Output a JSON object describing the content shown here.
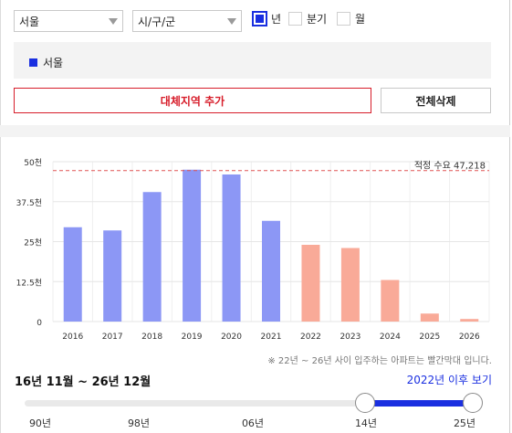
{
  "filters": {
    "city": "서울",
    "district": "시/구/군",
    "period_options": [
      {
        "label": "년",
        "checked": true
      },
      {
        "label": "분기",
        "checked": false
      },
      {
        "label": "월",
        "checked": false
      }
    ]
  },
  "region_tag": {
    "label": "서울",
    "color": "#1a2fe0"
  },
  "buttons": {
    "add_label": "대체지역 추가",
    "clear_label": "전체삭제"
  },
  "chart_data": {
    "type": "bar",
    "categories": [
      "2016",
      "2017",
      "2018",
      "2019",
      "2020",
      "2021",
      "2022",
      "2023",
      "2024",
      "2025",
      "2026"
    ],
    "values": [
      29500,
      28500,
      40500,
      47500,
      46000,
      31500,
      24000,
      23000,
      13000,
      2500,
      800
    ],
    "bar_colors": [
      "#8c97f5",
      "#8c97f5",
      "#8c97f5",
      "#8c97f5",
      "#8c97f5",
      "#8c97f5",
      "#f9aa98",
      "#f9aa98",
      "#f9aa98",
      "#f9aa98",
      "#f9aa98"
    ],
    "ylim": [
      0,
      50000
    ],
    "yticks": [
      {
        "value": 0,
        "label": "0"
      },
      {
        "value": 12500,
        "label": "12.5천"
      },
      {
        "value": 25000,
        "label": "25천"
      },
      {
        "value": 37500,
        "label": "37.5천"
      },
      {
        "value": 50000,
        "label": "50천"
      }
    ],
    "reference_line": {
      "value": 47218,
      "label": "적정 수요 47,218",
      "color": "#e05555"
    },
    "grid": true
  },
  "note": "※ 22년 ~ 26년 사이 입주하는 아파트는 빨간막대 입니다.",
  "range_label": "16년 11월 ~ 26년 12월",
  "after_link": "2022년 이후 보기",
  "slider": {
    "ticks": [
      "90년",
      "98년",
      "06년",
      "14년",
      "25년"
    ],
    "range_start": "14년",
    "range_end": "25년"
  }
}
